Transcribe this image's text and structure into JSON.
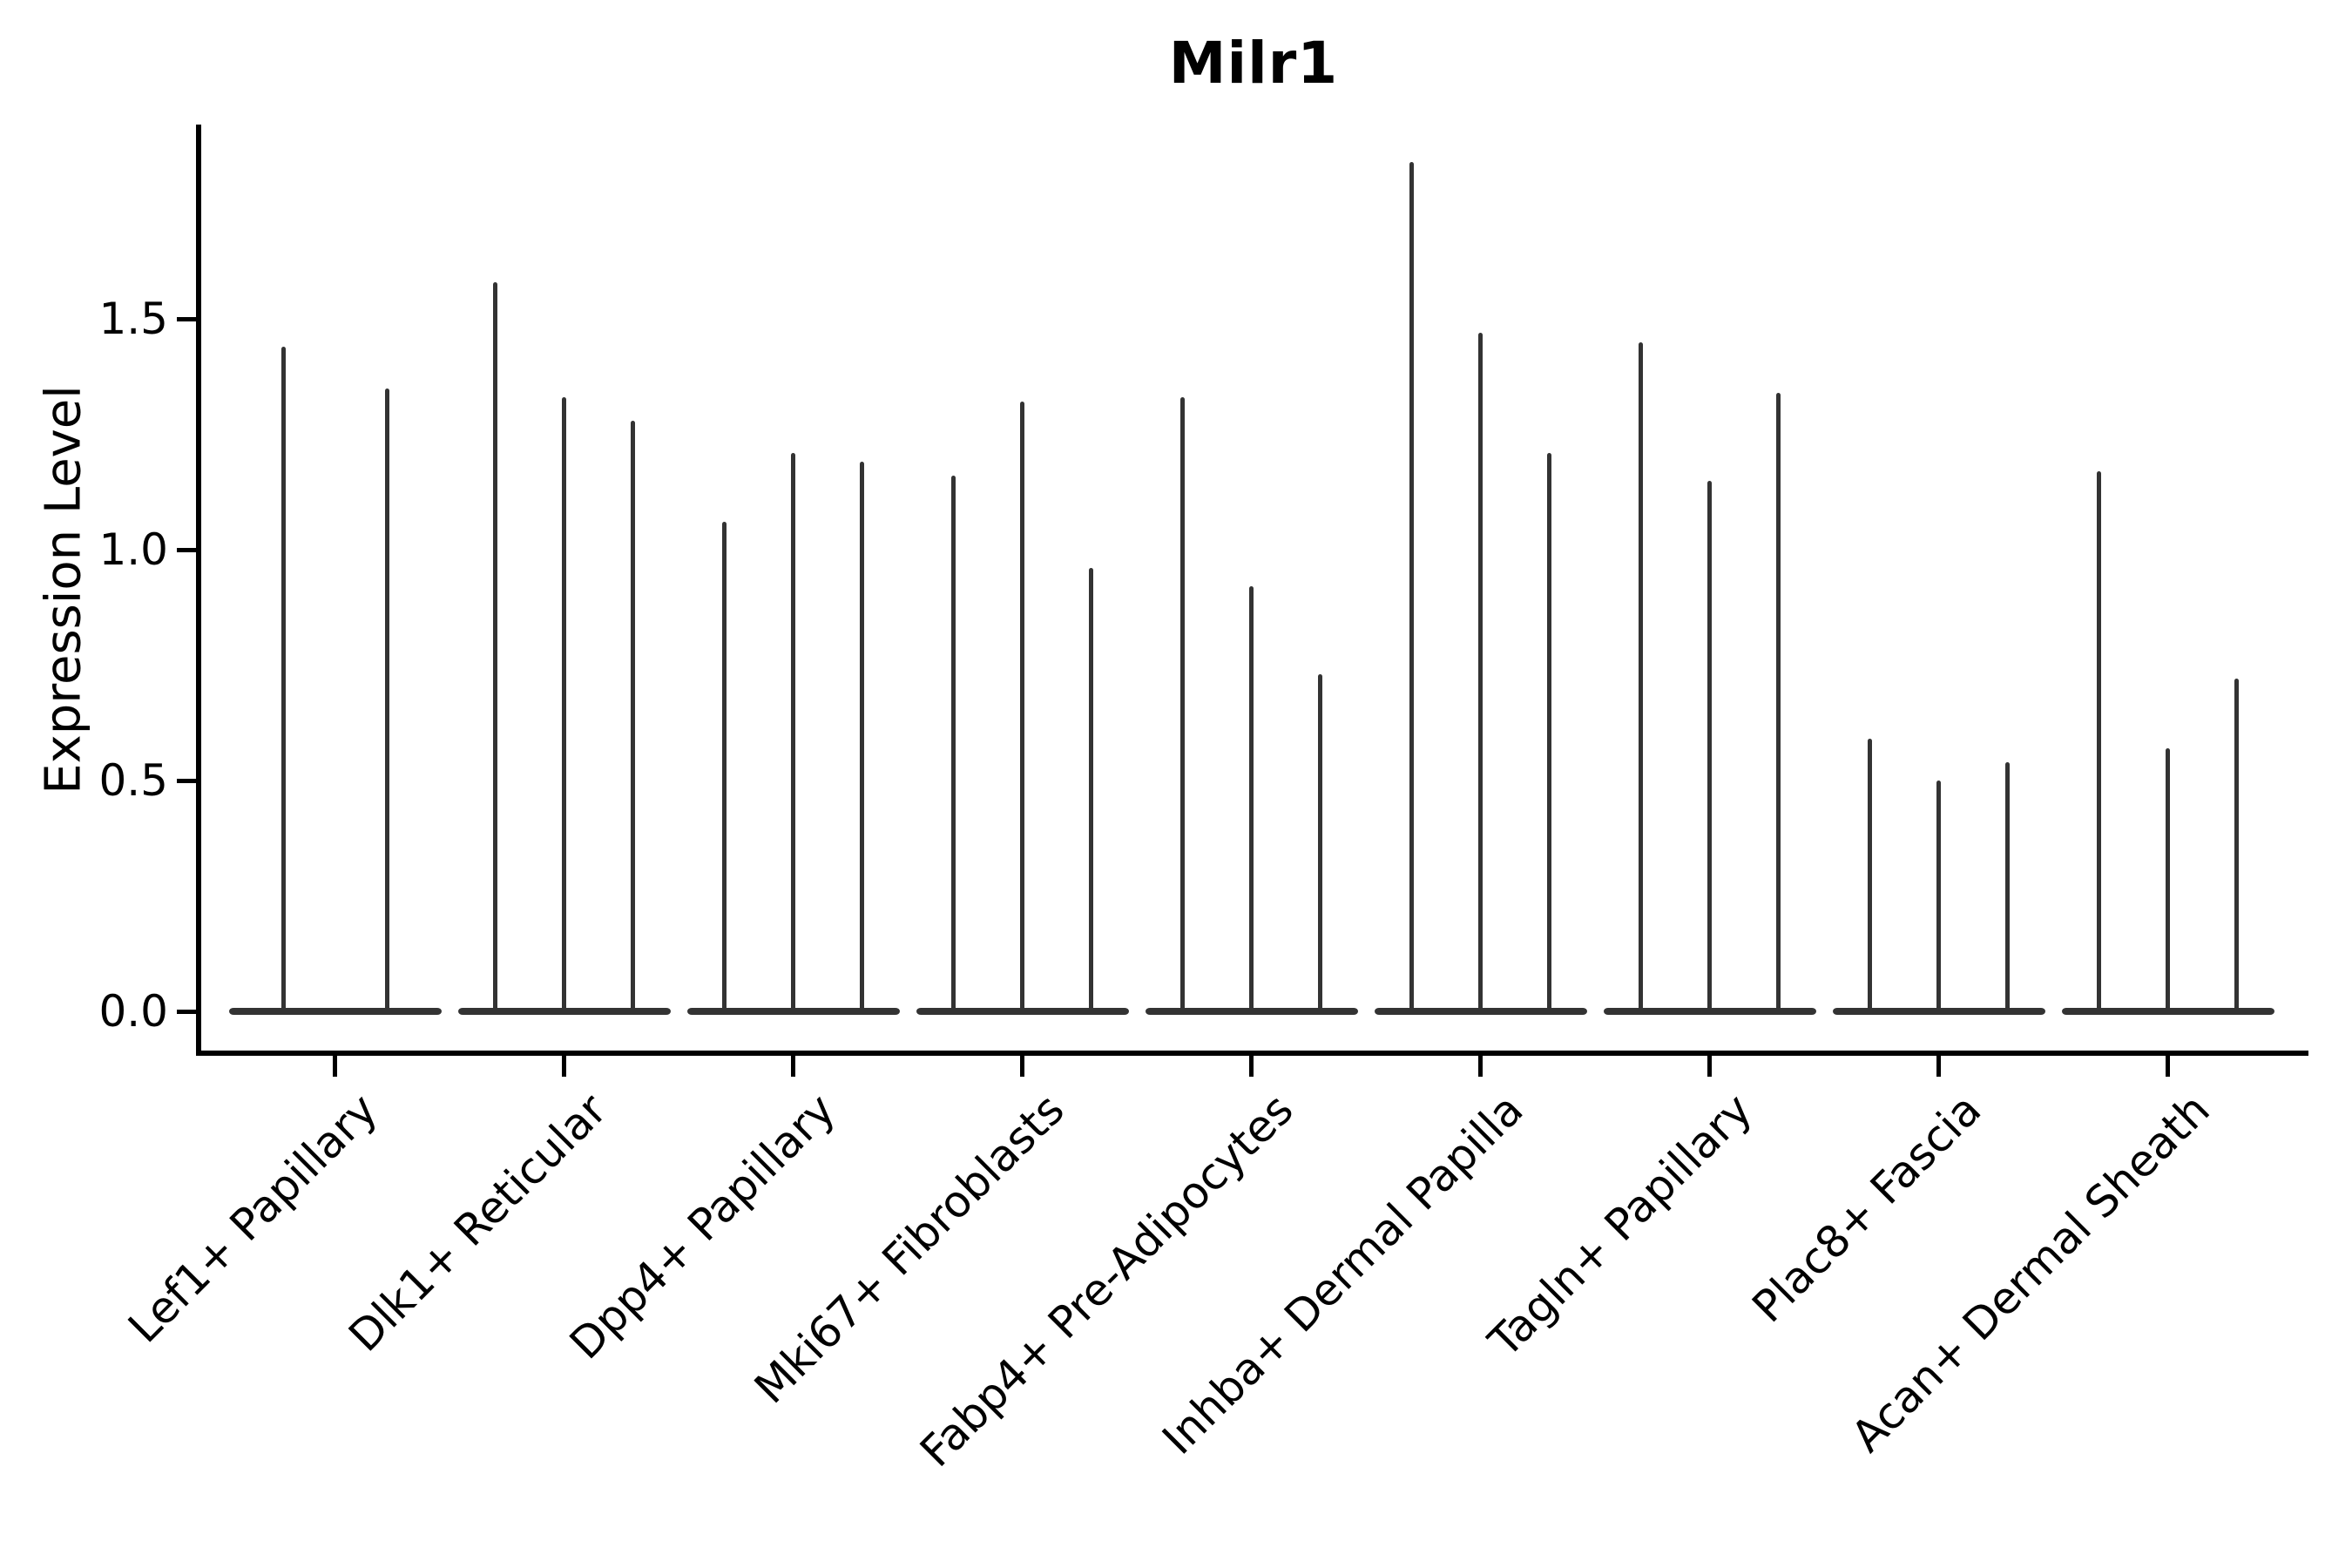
{
  "title": "Milr1",
  "chart_data": {
    "type": "violin",
    "title": "Milr1",
    "xlabel": "",
    "ylabel": "Expression Level",
    "ytick_labels": [
      "0.0",
      "0.5",
      "1.0",
      "1.5"
    ],
    "ytick_values": [
      0.0,
      0.5,
      1.0,
      1.5
    ],
    "ylim": [
      -0.09,
      1.92
    ],
    "grid": false,
    "legend_position": "none",
    "style_note": "needle-thin violins: each cluster shows 2-3 hairline density spikes rising from a flat basal bar at expression 0",
    "violin_color": "#333333",
    "axis_color": "#000000",
    "text_color": "#000000",
    "groups": [
      {
        "label": "Lef1+ Papillary",
        "violin_peaks": [
          1.44,
          1.35
        ]
      },
      {
        "label": "Dlk1+ Reticular",
        "violin_peaks": [
          1.58,
          1.33,
          1.28
        ]
      },
      {
        "label": "Dpp4+ Papillary",
        "violin_peaks": [
          1.06,
          1.21,
          1.19
        ]
      },
      {
        "label": "Mki67+ Fibroblasts",
        "violin_peaks": [
          1.16,
          1.32,
          0.96
        ]
      },
      {
        "label": "Fabp4+ Pre-Adipocytes",
        "violin_peaks": [
          1.33,
          0.92,
          0.73
        ]
      },
      {
        "label": "Inhba+ Dermal Papilla",
        "violin_peaks": [
          1.84,
          1.47,
          1.21
        ]
      },
      {
        "label": "Tagln+ Papillary",
        "violin_peaks": [
          1.45,
          1.15,
          1.34
        ]
      },
      {
        "label": "Plac8+ Fascia",
        "violin_peaks": [
          0.59,
          0.5,
          0.54
        ]
      },
      {
        "label": "Acan+ Dermal Sheath",
        "violin_peaks": [
          1.17,
          0.57,
          0.72
        ]
      }
    ]
  }
}
